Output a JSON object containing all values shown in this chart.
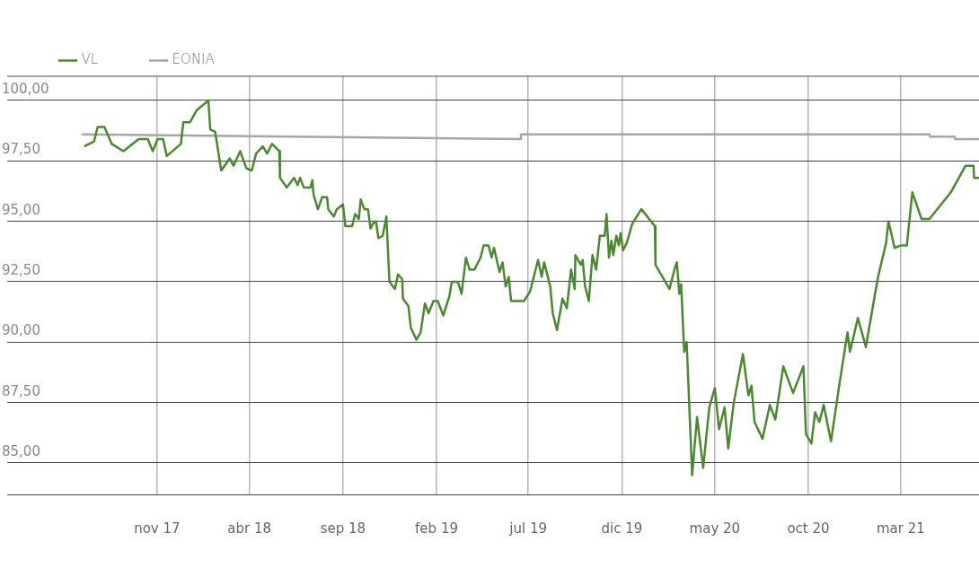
{
  "chart_data": {
    "type": "line",
    "legend": "top left",
    "grid": true,
    "marker": "none",
    "xlim": [
      "2017-03-01",
      "2021-07-07"
    ],
    "xticks": [
      {
        "value": "2017-11-01",
        "label": "nov 17"
      },
      {
        "value": "2018-04-01",
        "label": "abr 18"
      },
      {
        "value": "2018-09-01",
        "label": "sep 18"
      },
      {
        "value": "2019-02-01",
        "label": "feb 19"
      },
      {
        "value": "2019-07-01",
        "label": "jul 19"
      },
      {
        "value": "2019-12-01",
        "label": "dic 19"
      },
      {
        "value": "2020-05-01",
        "label": "may 20"
      },
      {
        "value": "2020-10-01",
        "label": "oct 20"
      },
      {
        "value": "2021-03-01",
        "label": "mar 21"
      }
    ],
    "ylim": [
      83.7,
      101
    ],
    "yticks": [
      {
        "value": 85,
        "label": "85,00"
      },
      {
        "value": 87.5,
        "label": "87,50"
      },
      {
        "value": 90,
        "label": "90,00"
      },
      {
        "value": 92.5,
        "label": "92,50"
      },
      {
        "value": 95,
        "label": "95,00"
      },
      {
        "value": 97.5,
        "label": "97,50"
      },
      {
        "value": 100,
        "label": "100,00"
      }
    ],
    "series": [
      {
        "name": "VL",
        "color": "#4a8a2e",
        "x": [
          "2017-07-05",
          "2017-07-21",
          "2017-07-27",
          "2017-08-07",
          "2017-08-19",
          "2017-09-07",
          "2017-10-02",
          "2017-10-17",
          "2017-10-25",
          "2017-11-02",
          "2017-11-11",
          "2017-11-17",
          "2017-12-10",
          "2017-12-14",
          "2017-12-25",
          "2018-01-05",
          "2018-01-24",
          "2018-01-27",
          "2018-02-04",
          "2018-02-14",
          "2018-02-28",
          "2018-03-06",
          "2018-03-17",
          "2018-03-27",
          "2018-04-05",
          "2018-04-12",
          "2018-04-23",
          "2018-04-30",
          "2018-05-08",
          "2018-05-20",
          "2018-05-21",
          "2018-06-01",
          "2018-06-13",
          "2018-06-19",
          "2018-06-23",
          "2018-06-29",
          "2018-07-10",
          "2018-07-13",
          "2018-07-15",
          "2018-07-22",
          "2018-07-29",
          "2018-08-06",
          "2018-08-08",
          "2018-08-17",
          "2018-08-22",
          "2018-09-01",
          "2018-09-05",
          "2018-09-16",
          "2018-09-21",
          "2018-09-27",
          "2018-09-30",
          "2018-10-06",
          "2018-10-12",
          "2018-10-16",
          "2018-10-20",
          "2018-10-25",
          "2018-10-29",
          "2018-11-05",
          "2018-11-11",
          "2018-11-16",
          "2018-11-25",
          "2018-11-30",
          "2018-12-07",
          "2018-12-08",
          "2018-12-17",
          "2018-12-21",
          "2018-12-30",
          "2019-01-06",
          "2019-01-13",
          "2019-01-19",
          "2019-01-27",
          "2019-02-03",
          "2019-02-12",
          "2019-02-22",
          "2019-02-26",
          "2019-03-08",
          "2019-03-14",
          "2019-03-21",
          "2019-03-27",
          "2019-04-04",
          "2019-04-14",
          "2019-04-19",
          "2019-04-27",
          "2019-05-02",
          "2019-05-06",
          "2019-05-15",
          "2019-05-20",
          "2019-05-25",
          "2019-05-30",
          "2019-06-03",
          "2019-06-17",
          "2019-06-24",
          "2019-07-04",
          "2019-07-17",
          "2019-07-23",
          "2019-07-27",
          "2019-08-06",
          "2019-08-10",
          "2019-08-17",
          "2019-08-26",
          "2019-09-02",
          "2019-09-09",
          "2019-09-15",
          "2019-09-16",
          "2019-09-25",
          "2019-09-28",
          "2019-10-02",
          "2019-10-08",
          "2019-10-14",
          "2019-10-20",
          "2019-10-26",
          "2019-11-03",
          "2019-11-06",
          "2019-11-10",
          "2019-11-14",
          "2019-11-17",
          "2019-11-22",
          "2019-11-26",
          "2019-11-29",
          "2019-12-03",
          "2019-12-09",
          "2019-12-18",
          "2019-12-23",
          "2020-01-02",
          "2020-01-24",
          "2020-01-25",
          "2020-02-17",
          "2020-02-26",
          "2020-02-29",
          "2020-03-04",
          "2020-03-07",
          "2020-03-12",
          "2020-03-16",
          "2020-03-25",
          "2020-04-02",
          "2020-04-12",
          "2020-04-22",
          "2020-05-01",
          "2020-05-08",
          "2020-05-17",
          "2020-05-23",
          "2020-06-01",
          "2020-06-16",
          "2020-06-25",
          "2020-06-30",
          "2020-07-05",
          "2020-07-18",
          "2020-07-30",
          "2020-08-08",
          "2020-08-21",
          "2020-09-06",
          "2020-09-23",
          "2020-09-27",
          "2020-10-06",
          "2020-10-12",
          "2020-10-19",
          "2020-10-26",
          "2020-11-07",
          "2020-11-21",
          "2020-12-04",
          "2020-12-08",
          "2020-12-21",
          "2021-01-03",
          "2021-01-16",
          "2021-01-23",
          "2021-02-05",
          "2021-02-09",
          "2021-02-19",
          "2021-03-01",
          "2021-03-11",
          "2021-03-20",
          "2021-04-04",
          "2021-04-17",
          "2021-05-22",
          "2021-06-15",
          "2021-06-28",
          "2021-06-29",
          "2021-07-07"
        ],
        "values": [
          98.1,
          98.3,
          98.9,
          98.9,
          98.2,
          97.9,
          98.4,
          98.4,
          97.9,
          98.4,
          98.4,
          97.7,
          98.2,
          99.1,
          99.1,
          99.6,
          100.0,
          98.8,
          98.7,
          97.1,
          97.6,
          97.3,
          97.9,
          97.2,
          97.1,
          97.8,
          98.1,
          97.8,
          98.2,
          97.9,
          96.8,
          96.4,
          96.8,
          96.5,
          96.8,
          96.4,
          96.4,
          96.7,
          96.1,
          95.5,
          96.0,
          96.0,
          95.5,
          95.2,
          95.5,
          95.7,
          94.8,
          94.8,
          95.3,
          95.1,
          95.9,
          95.5,
          95.5,
          94.7,
          94.9,
          95.0,
          94.3,
          94.4,
          95.2,
          92.5,
          92.2,
          92.8,
          92.6,
          91.8,
          91.5,
          90.6,
          90.1,
          90.4,
          91.6,
          91.2,
          91.7,
          91.7,
          91.1,
          91.9,
          92.5,
          92.5,
          92.0,
          93.5,
          93.0,
          93.0,
          93.5,
          94.0,
          94.0,
          93.5,
          93.9,
          92.9,
          93.3,
          92.3,
          92.7,
          91.7,
          91.7,
          91.7,
          92.1,
          93.4,
          92.7,
          93.3,
          92.3,
          91.2,
          90.5,
          91.8,
          91.4,
          93.0,
          92.2,
          93.6,
          93.2,
          93.4,
          92.3,
          91.7,
          93.6,
          93.0,
          94.4,
          94.4,
          95.3,
          93.5,
          94.2,
          93.6,
          94.4,
          94.0,
          94.5,
          93.8,
          94.1,
          94.9,
          95.1,
          95.5,
          94.8,
          93.2,
          92.2,
          93.1,
          93.3,
          92.0,
          92.4,
          89.6,
          90.0,
          84.5,
          86.9,
          84.8,
          87.3,
          88.1,
          86.4,
          87.3,
          85.6,
          87.5,
          89.5,
          87.8,
          88.2,
          86.7,
          86.0,
          87.4,
          86.8,
          89.0,
          87.9,
          89.0,
          86.2,
          85.8,
          87.1,
          86.7,
          87.4,
          85.9,
          88.3,
          90.4,
          89.6,
          91.0,
          89.8,
          91.7,
          92.7,
          94.1,
          95.0,
          93.9,
          94.0,
          94.0,
          96.2,
          95.1,
          95.1,
          96.2,
          97.3,
          97.3,
          96.8,
          96.8
        ]
      },
      {
        "name": "EONIA",
        "color": "#a6a6a6",
        "x": [
          "2017-07-01",
          "2019-06-18",
          "2019-06-19",
          "2021-04-17",
          "2021-04-18",
          "2021-05-28",
          "2021-05-29",
          "2021-07-07"
        ],
        "values": [
          98.6,
          98.4,
          98.6,
          98.6,
          98.5,
          98.5,
          98.4,
          98.4
        ]
      }
    ]
  }
}
